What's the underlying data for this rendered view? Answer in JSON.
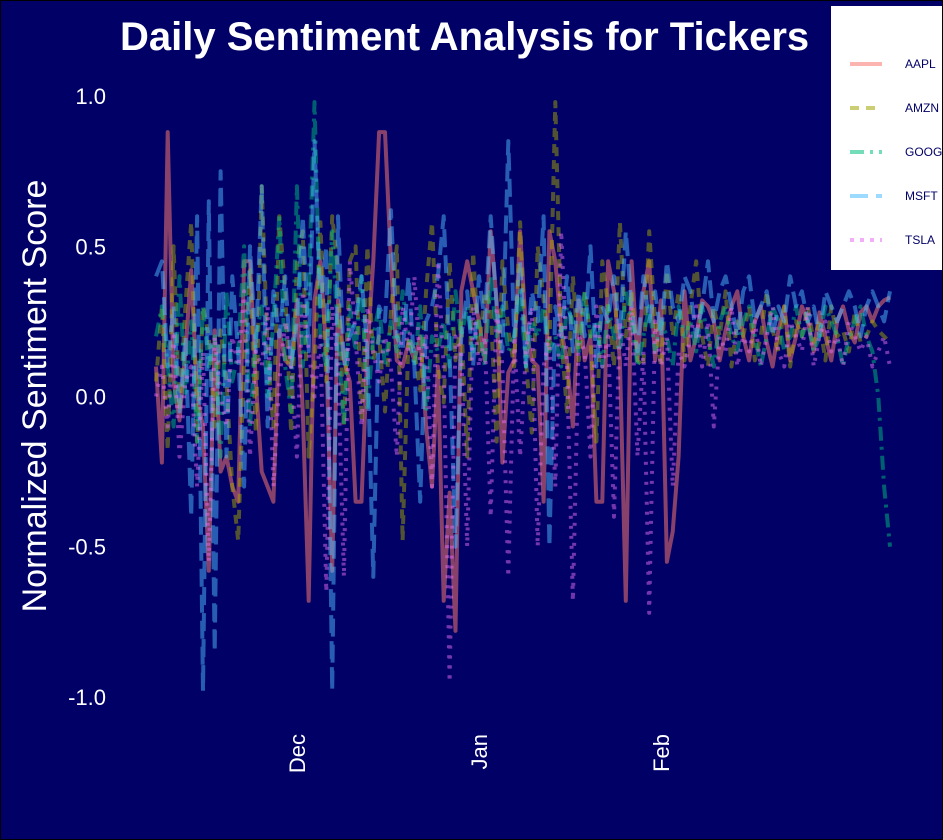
{
  "chart_data": {
    "type": "line",
    "title": "Daily Sentiment Analysis for Tickers",
    "xlabel": "",
    "ylabel": "Normalized Sentiment Score",
    "ylim": [
      -1.1,
      1.1
    ],
    "yticks": [
      -1.0,
      -0.5,
      0.0,
      0.5,
      1.0
    ],
    "ytick_labels": [
      "-1.0",
      "-0.5",
      "0.0",
      "0.5",
      "1.0"
    ],
    "xlim": [
      0,
      125
    ],
    "xticks": [
      {
        "label": "Dec",
        "x": 24
      },
      {
        "label": "Jan",
        "x": 55
      },
      {
        "label": "Feb",
        "x": 86
      }
    ],
    "grid": false,
    "legend_position": "top-right",
    "series": [
      {
        "name": "AAPL",
        "color": "#f8766d",
        "dash": "solid",
        "x": [
          0,
          1,
          2,
          3,
          4,
          5,
          6,
          7,
          8,
          9,
          10,
          11,
          12,
          13,
          14,
          15,
          16,
          17,
          18,
          19,
          20,
          21,
          22,
          23,
          24,
          25,
          26,
          27,
          28,
          29,
          30,
          31,
          32,
          33,
          34,
          35,
          36,
          37,
          38,
          39,
          40,
          41,
          42,
          43,
          44,
          45,
          46,
          47,
          48,
          49,
          50,
          51,
          52,
          53,
          54,
          55,
          56,
          57,
          58,
          59,
          60,
          61,
          62,
          63,
          64,
          65,
          66,
          67,
          68,
          69,
          70,
          71,
          72,
          73,
          74,
          75,
          76,
          77,
          78,
          79,
          80,
          81,
          82,
          83,
          84,
          85,
          86,
          87,
          88,
          89,
          90,
          91,
          92,
          93,
          94,
          95,
          96,
          97,
          98,
          99,
          100,
          101,
          102,
          103,
          104,
          105,
          106,
          107,
          108,
          109,
          110,
          111,
          112,
          113,
          114,
          115,
          116,
          117,
          118,
          119,
          120,
          121,
          122,
          123,
          124,
          125
        ],
        "values": [
          0.1,
          -0.22,
          0.88,
          0.05,
          -0.08,
          0.15,
          0.42,
          0.0,
          -0.1,
          -0.58,
          0.22,
          -0.25,
          -0.2,
          -0.3,
          -0.35,
          0.45,
          0.45,
          0.05,
          -0.25,
          -0.3,
          -0.35,
          0.22,
          0.12,
          0.1,
          0.32,
          -0.05,
          -0.68,
          0.32,
          0.45,
          0.15,
          -0.58,
          0.32,
          0.12,
          0.05,
          -0.35,
          -0.35,
          0.15,
          0.45,
          0.88,
          0.88,
          0.45,
          0.12,
          0.1,
          0.18,
          0.12,
          0.2,
          -0.1,
          -0.3,
          0.1,
          -0.68,
          -0.32,
          -0.78,
          0.35,
          0.45,
          0.35,
          0.25,
          0.12,
          0.55,
          0.32,
          -0.22,
          0.08,
          0.12,
          0.55,
          0.22,
          0.12,
          0.1,
          -0.35,
          0.55,
          0.45,
          0.22,
          0.12,
          -0.1,
          0.32,
          0.12,
          0.2,
          -0.35,
          -0.35,
          0.45,
          0.35,
          0.12,
          -0.68,
          0.45,
          0.12,
          0.35,
          0.45,
          0.12,
          0.32,
          -0.55,
          -0.45,
          -0.2,
          0.35,
          0.12,
          0.2,
          0.32,
          0.3,
          0.25,
          0.12,
          0.22,
          0.3,
          0.35,
          0.2,
          0.12,
          0.25,
          0.3,
          0.18,
          0.1,
          0.22,
          0.3,
          0.12,
          0.2,
          0.3,
          0.25,
          0.15,
          0.28,
          0.2,
          0.12,
          0.25,
          0.3,
          0.22,
          0.18,
          0.28,
          0.3,
          0.25,
          0.3,
          0.32,
          0.33
        ]
      },
      {
        "name": "AMZN",
        "color": "#a3a500",
        "dash": "dashed",
        "values": [
          0.05,
          0.3,
          -0.18,
          0.5,
          -0.05,
          0.3,
          0.58,
          -0.15,
          0.3,
          0.2,
          -0.1,
          0.22,
          0.05,
          -0.3,
          -0.48,
          0.12,
          0.42,
          -0.12,
          0.7,
          0.15,
          -0.1,
          0.6,
          0.35,
          -0.12,
          0.45,
          0.55,
          -0.2,
          0.1,
          0.58,
          0.05,
          0.6,
          0.42,
          -0.1,
          0.45,
          0.5,
          -0.08,
          0.5,
          0.12,
          0.2,
          -0.05,
          0.28,
          0.5,
          -0.48,
          0.2,
          0.15,
          0.02,
          0.35,
          0.58,
          0.1,
          -0.02,
          0.45,
          0.12,
          0.25,
          -0.2,
          0.48,
          0.15,
          0.35,
          0.3,
          -0.15,
          0.45,
          0.22,
          0.1,
          0.58,
          0.12,
          -0.12,
          0.5,
          0.32,
          0.15,
          0.98,
          0.2,
          -0.05,
          0.4,
          0.12,
          0.35,
          0.2,
          -0.15,
          0.45,
          0.3,
          0.1,
          0.58,
          0.2,
          0.35,
          0.12,
          0.1,
          0.55,
          0.25,
          0.1,
          0.42,
          0.2,
          0.35,
          0.12,
          0.3,
          0.45,
          0.2,
          0.1,
          0.3,
          0.2,
          0.35,
          0.1,
          0.25,
          0.2,
          0.3,
          0.12,
          0.2,
          0.35,
          0.22,
          0.15,
          0.3,
          0.1,
          0.25,
          0.2,
          0.3,
          0.18,
          0.25,
          0.12,
          0.3,
          0.2,
          0.22,
          0.15,
          0.28,
          0.18,
          0.2,
          0.25,
          0.22,
          0.2,
          0.18
        ]
      },
      {
        "name": "GOOG",
        "color": "#00bf7d",
        "dash": "dashdot",
        "values": [
          0.2,
          0.3,
          0.1,
          -0.1,
          0.4,
          0.0,
          0.25,
          -0.15,
          0.3,
          0.1,
          0.2,
          -0.2,
          0.35,
          0.05,
          0.15,
          0.5,
          -0.1,
          0.2,
          0.3,
          0.0,
          0.25,
          0.6,
          0.1,
          -0.05,
          0.7,
          0.1,
          0.35,
          0.98,
          0.2,
          0.1,
          0.55,
          0.2,
          -0.1,
          0.3,
          0.15,
          0.4,
          -0.05,
          0.2,
          0.3,
          0.1,
          0.25,
          0.15,
          0.35,
          0.2,
          0.1,
          0.3,
          -0.05,
          0.2,
          0.15,
          0.25,
          0.1,
          0.35,
          0.2,
          0.3,
          0.15,
          0.25,
          0.1,
          0.4,
          0.2,
          0.3,
          0.15,
          0.2,
          0.35,
          0.1,
          0.25,
          0.2,
          0.3,
          0.15,
          0.2,
          0.1,
          0.3,
          0.25,
          0.15,
          0.35,
          0.2,
          0.25,
          0.1,
          0.3,
          0.2,
          0.15,
          0.35,
          0.25,
          0.1,
          0.2,
          0.3,
          0.15,
          0.25,
          0.2,
          0.1,
          0.3,
          0.2,
          0.25,
          0.15,
          0.3,
          0.2,
          0.1,
          0.25,
          0.3,
          0.2,
          0.15,
          0.25,
          0.3,
          0.2,
          0.1,
          0.2,
          0.3,
          0.25,
          0.15,
          0.2,
          0.3,
          0.2,
          0.25,
          0.15,
          0.2,
          0.3,
          0.25,
          0.2,
          0.1,
          0.2,
          0.25,
          0.3,
          0.2,
          0.15,
          0.0,
          -0.3,
          -0.5
        ]
      },
      {
        "name": "MSFT",
        "color": "#4dbbff",
        "dash": "longdash",
        "values": [
          0.4,
          0.45,
          0.1,
          0.3,
          -0.05,
          0.2,
          -0.4,
          0.6,
          -0.98,
          0.65,
          -0.85,
          0.75,
          -0.2,
          0.4,
          0.15,
          -0.3,
          0.5,
          0.15,
          0.7,
          -0.1,
          0.35,
          0.2,
          0.4,
          0.1,
          0.25,
          0.6,
          0.15,
          0.85,
          0.3,
          0.5,
          -0.98,
          0.6,
          0.1,
          0.2,
          0.25,
          0.4,
          0.15,
          -0.6,
          0.3,
          0.25,
          0.62,
          0.2,
          0.15,
          0.4,
          0.1,
          -0.35,
          0.25,
          0.3,
          0.4,
          0.6,
          0.15,
          -0.5,
          0.2,
          0.35,
          0.1,
          0.4,
          0.25,
          0.6,
          0.3,
          0.15,
          0.85,
          0.2,
          0.45,
          0.1,
          0.35,
          0.25,
          0.6,
          -0.5,
          0.3,
          0.2,
          0.4,
          0.15,
          0.35,
          0.2,
          0.5,
          0.1,
          0.3,
          0.25,
          0.4,
          0.2,
          0.55,
          0.3,
          0.15,
          0.4,
          0.25,
          0.35,
          0.2,
          0.45,
          0.3,
          0.25,
          0.4,
          0.35,
          0.2,
          0.3,
          0.45,
          0.25,
          0.35,
          0.4,
          0.3,
          0.2,
          0.35,
          0.4,
          0.25,
          0.3,
          0.35,
          0.2,
          0.3,
          0.25,
          0.4,
          0.3,
          0.35,
          0.25,
          0.3,
          0.2,
          0.35,
          0.3,
          0.25,
          0.3,
          0.35,
          0.3,
          0.2,
          0.3,
          0.35,
          0.3,
          0.25,
          0.35
        ]
      },
      {
        "name": "TSLA",
        "color": "#e76bf3",
        "dash": "dotted",
        "values": [
          0.0,
          0.1,
          -0.1,
          0.2,
          -0.2,
          0.05,
          0.1,
          -0.3,
          0.15,
          -0.55,
          0.2,
          0.0,
          -0.1,
          0.2,
          0.1,
          0.35,
          -0.2,
          0.15,
          0.1,
          0.3,
          -0.3,
          0.05,
          0.25,
          0.1,
          -0.2,
          0.35,
          0.15,
          0.0,
          0.2,
          -0.65,
          0.3,
          0.1,
          -0.6,
          0.45,
          0.2,
          -0.1,
          0.3,
          0.15,
          0.05,
          0.2,
          0.1,
          -0.2,
          0.3,
          0.15,
          0.4,
          0.1,
          0.2,
          -0.3,
          0.45,
          0.1,
          -0.95,
          0.2,
          0.15,
          -0.5,
          0.3,
          0.1,
          0.2,
          -0.4,
          0.3,
          0.1,
          -0.6,
          0.2,
          -0.2,
          0.15,
          0.3,
          -0.5,
          0.1,
          0.2,
          -0.3,
          0.55,
          0.1,
          -0.68,
          0.2,
          0.15,
          -0.2,
          0.3,
          0.1,
          0.2,
          -0.4,
          0.25,
          0.1,
          0.3,
          -0.2,
          0.15,
          -0.72,
          0.25,
          0.1,
          0.2,
          -0.3,
          0.15,
          0.1,
          0.2,
          0.3,
          0.1,
          0.25,
          -0.1,
          0.2,
          0.15,
          0.3,
          0.1,
          0.2,
          0.15,
          0.25,
          0.1,
          0.2,
          0.3,
          0.15,
          0.1,
          0.25,
          0.2,
          0.15,
          0.3,
          0.1,
          0.2,
          0.25,
          0.15,
          0.2,
          0.1,
          0.25,
          0.2,
          0.15,
          0.2,
          0.1,
          0.15,
          0.2,
          0.1
        ]
      }
    ]
  }
}
